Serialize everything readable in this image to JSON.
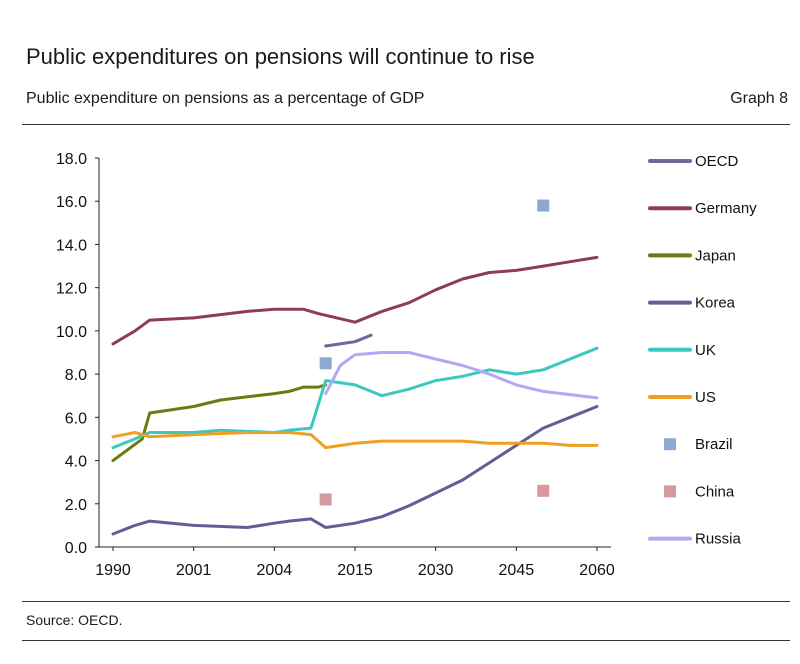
{
  "header": {
    "title": "Public expenditures on pensions will continue to rise",
    "subtitle": "Public expenditure on pensions as a percentage of GDP",
    "graph_label": "Graph 8"
  },
  "footer": {
    "source": "Source: OECD."
  },
  "chart_data": {
    "type": "line",
    "title": "",
    "xlabel": "",
    "ylabel": "",
    "x_ticks": [
      1990,
      2001,
      2004,
      2015,
      2030,
      2045,
      2060
    ],
    "x_tick_labels": [
      "1990",
      "2001",
      "2004",
      "2015",
      "2030",
      "2045",
      "2060"
    ],
    "ylim": [
      0,
      18
    ],
    "y_ticks": [
      0,
      2,
      4,
      6,
      8,
      10,
      12,
      14,
      16,
      18
    ],
    "y_tick_labels": [
      "0.0",
      "2.0",
      "4.0",
      "6.0",
      "8.0",
      "10.0",
      "12.0",
      "14.0",
      "16.0",
      "18.0"
    ],
    "grid": false,
    "legend_position": "right",
    "series": [
      {
        "name": "OECD",
        "kind": "line",
        "color": "#6b6a9a",
        "points": [
          [
            2011,
            9.3
          ],
          [
            2013,
            9.4
          ],
          [
            2015,
            9.5
          ],
          [
            2018,
            9.8
          ]
        ]
      },
      {
        "name": "Germany",
        "kind": "line",
        "color": "#8e3a5e",
        "points": [
          [
            1990,
            9.4
          ],
          [
            1993,
            10.0
          ],
          [
            1995,
            10.5
          ],
          [
            2001,
            10.6
          ],
          [
            2003,
            10.9
          ],
          [
            2004,
            11.0
          ],
          [
            2008,
            11.0
          ],
          [
            2010,
            10.8
          ],
          [
            2015,
            10.4
          ],
          [
            2020,
            10.9
          ],
          [
            2025,
            11.3
          ],
          [
            2030,
            11.9
          ],
          [
            2035,
            12.4
          ],
          [
            2040,
            12.7
          ],
          [
            2045,
            12.8
          ],
          [
            2050,
            13.0
          ],
          [
            2055,
            13.2
          ],
          [
            2060,
            13.4
          ]
        ]
      },
      {
        "name": "Japan",
        "kind": "line",
        "color": "#6b7a12",
        "points": [
          [
            1990,
            4.0
          ],
          [
            1994,
            5.0
          ],
          [
            1995,
            6.2
          ],
          [
            2001,
            6.5
          ],
          [
            2002,
            6.8
          ],
          [
            2004,
            7.1
          ],
          [
            2006,
            7.2
          ],
          [
            2008,
            7.4
          ],
          [
            2010,
            7.4
          ],
          [
            2011,
            7.5
          ]
        ]
      },
      {
        "name": "Korea",
        "kind": "line",
        "color": "#5f5f95",
        "points": [
          [
            1990,
            0.6
          ],
          [
            1993,
            1.0
          ],
          [
            1995,
            1.2
          ],
          [
            2001,
            1.0
          ],
          [
            2003,
            0.9
          ],
          [
            2004,
            1.1
          ],
          [
            2006,
            1.2
          ],
          [
            2009,
            1.3
          ],
          [
            2011,
            0.9
          ],
          [
            2015,
            1.1
          ],
          [
            2020,
            1.4
          ],
          [
            2025,
            1.9
          ],
          [
            2030,
            2.5
          ],
          [
            2035,
            3.1
          ],
          [
            2040,
            3.9
          ],
          [
            2045,
            4.7
          ],
          [
            2050,
            5.5
          ],
          [
            2055,
            6.0
          ],
          [
            2060,
            6.5
          ]
        ]
      },
      {
        "name": "UK",
        "kind": "line",
        "color": "#3cc7c0",
        "points": [
          [
            1990,
            4.6
          ],
          [
            1993,
            5.0
          ],
          [
            1995,
            5.3
          ],
          [
            2001,
            5.3
          ],
          [
            2002,
            5.4
          ],
          [
            2004,
            5.3
          ],
          [
            2006,
            5.4
          ],
          [
            2009,
            5.5
          ],
          [
            2011,
            7.7
          ],
          [
            2015,
            7.5
          ],
          [
            2020,
            7.0
          ],
          [
            2025,
            7.3
          ],
          [
            2030,
            7.7
          ],
          [
            2035,
            7.9
          ],
          [
            2040,
            8.2
          ],
          [
            2045,
            8.0
          ],
          [
            2050,
            8.2
          ],
          [
            2055,
            8.7
          ],
          [
            2060,
            9.2
          ]
        ]
      },
      {
        "name": "US",
        "kind": "line",
        "color": "#f0a020",
        "points": [
          [
            1990,
            5.1
          ],
          [
            1993,
            5.3
          ],
          [
            1995,
            5.1
          ],
          [
            2001,
            5.2
          ],
          [
            2003,
            5.3
          ],
          [
            2004,
            5.3
          ],
          [
            2006,
            5.3
          ],
          [
            2009,
            5.2
          ],
          [
            2011,
            4.6
          ],
          [
            2015,
            4.8
          ],
          [
            2020,
            4.9
          ],
          [
            2025,
            4.9
          ],
          [
            2030,
            4.9
          ],
          [
            2035,
            4.9
          ],
          [
            2040,
            4.8
          ],
          [
            2045,
            4.8
          ],
          [
            2050,
            4.8
          ],
          [
            2055,
            4.7
          ],
          [
            2060,
            4.7
          ]
        ]
      },
      {
        "name": "Brazil",
        "kind": "marker",
        "color": "#8ea8d2",
        "points": [
          [
            2011,
            8.5
          ],
          [
            2050,
            15.8
          ]
        ]
      },
      {
        "name": "China",
        "kind": "marker",
        "color": "#d49a9e",
        "points": [
          [
            2011,
            2.2
          ],
          [
            2050,
            2.6
          ]
        ]
      },
      {
        "name": "Russia",
        "kind": "line",
        "color": "#b1aaf2",
        "points": [
          [
            2011,
            7.1
          ],
          [
            2013,
            8.4
          ],
          [
            2015,
            8.9
          ],
          [
            2020,
            9.0
          ],
          [
            2025,
            9.0
          ],
          [
            2030,
            8.7
          ],
          [
            2035,
            8.4
          ],
          [
            2040,
            8.0
          ],
          [
            2045,
            7.5
          ],
          [
            2050,
            7.2
          ],
          [
            2060,
            6.9
          ]
        ]
      }
    ]
  }
}
